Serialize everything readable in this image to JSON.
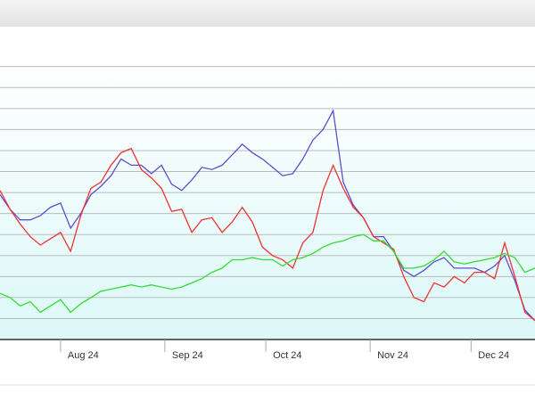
{
  "chart_data": {
    "type": "line",
    "x": [
      13,
      16,
      19,
      22,
      25,
      28,
      31,
      34,
      37,
      40,
      43,
      46,
      49,
      52,
      55,
      58,
      61,
      64,
      67,
      70,
      73,
      76,
      79,
      82,
      85,
      88,
      91,
      94,
      97,
      100,
      103,
      106,
      109,
      112,
      115,
      118,
      121,
      124,
      127,
      130,
      133,
      136,
      139,
      142,
      145,
      148,
      151,
      154,
      157,
      160,
      163,
      166,
      169,
      172
    ],
    "series": [
      {
        "color": "#5a4fcf",
        "values": [
          6.9,
          6.2,
          5.7,
          5.7,
          5.9,
          6.3,
          6.5,
          5.3,
          6.0,
          6.9,
          7.3,
          7.8,
          8.6,
          8.3,
          8.3,
          7.9,
          8.3,
          7.4,
          7.1,
          7.6,
          8.2,
          8.1,
          8.3,
          8.8,
          9.3,
          8.9,
          8.6,
          8.2,
          7.8,
          7.9,
          8.6,
          9.5,
          10.0,
          10.9,
          7.5,
          6.4,
          5.8,
          4.9,
          4.9,
          4.2,
          3.3,
          3.0,
          3.3,
          3.7,
          3.9,
          3.4,
          3.4,
          3.4,
          3.2,
          3.5,
          4.0,
          2.8,
          1.4,
          0.9
        ]
      },
      {
        "color": "#ee3333",
        "values": [
          7.1,
          6.2,
          5.5,
          4.9,
          4.5,
          4.8,
          5.1,
          4.2,
          5.9,
          7.2,
          7.5,
          8.3,
          8.9,
          9.1,
          8.1,
          7.7,
          7.2,
          6.1,
          6.2,
          5.1,
          5.7,
          5.8,
          5.1,
          5.6,
          6.3,
          5.6,
          4.4,
          4.0,
          3.8,
          3.4,
          4.6,
          5.1,
          7.1,
          8.3,
          7.2,
          6.3,
          5.8,
          4.9,
          4.6,
          4.3,
          3.0,
          2.0,
          1.8,
          2.7,
          2.5,
          3.0,
          2.7,
          3.2,
          3.2,
          2.9,
          4.6,
          3.0,
          1.3,
          0.9
        ]
      },
      {
        "color": "#33dd33",
        "values": [
          2.2,
          2.0,
          1.6,
          1.8,
          1.3,
          1.6,
          1.9,
          1.3,
          1.7,
          2.0,
          2.3,
          2.4,
          2.5,
          2.6,
          2.5,
          2.6,
          2.5,
          2.4,
          2.5,
          2.7,
          2.9,
          3.2,
          3.4,
          3.8,
          3.8,
          3.9,
          3.8,
          3.8,
          3.5,
          3.8,
          3.9,
          4.1,
          4.4,
          4.6,
          4.7,
          4.9,
          5.0,
          4.7,
          4.7,
          4.2,
          3.4,
          3.4,
          3.5,
          3.8,
          4.2,
          3.7,
          3.6,
          3.7,
          3.8,
          3.9,
          4.1,
          3.9,
          3.2,
          3.4
        ]
      }
    ],
    "xlim": [
      13,
      172
    ],
    "xticks": [
      {
        "value": 31,
        "label": "Aug 24"
      },
      {
        "value": 62,
        "label": "Sep 24"
      },
      {
        "value": 92,
        "label": "Oct 24"
      },
      {
        "value": 123,
        "label": "Nov 24"
      },
      {
        "value": 153,
        "label": "Dec 24"
      }
    ],
    "ylim": [
      0,
      13.2
    ],
    "yticks": [
      1,
      2,
      3,
      4,
      5,
      6,
      7,
      8,
      9,
      10,
      11,
      12,
      13
    ],
    "grid": true
  }
}
